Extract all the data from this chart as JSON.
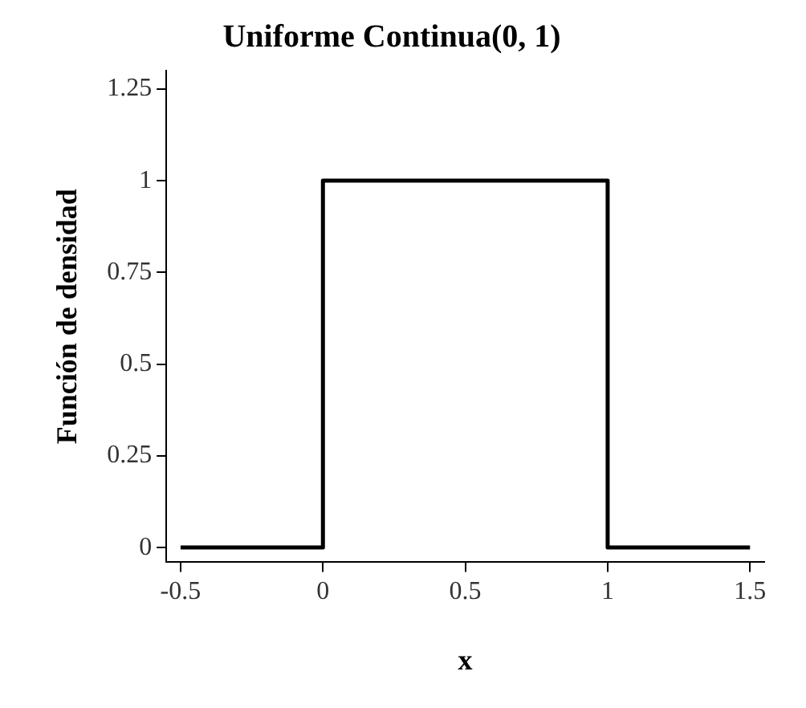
{
  "chart_data": {
    "type": "line",
    "title": "Uniforme Continua(0, 1)",
    "xlabel": "x",
    "ylabel": "Función de densidad",
    "x": [
      -0.5,
      0,
      0,
      1,
      1,
      1.5
    ],
    "series": [
      {
        "color": "#000000",
        "values": [
          0,
          0,
          1,
          1,
          0,
          0
        ]
      }
    ],
    "xlim": [
      -0.55,
      1.55
    ],
    "ylim": [
      -0.04,
      1.3
    ],
    "xticks": [
      -0.5,
      0,
      0.5,
      1,
      1.5
    ],
    "yticks": [
      0,
      0.25,
      0.5,
      0.75,
      1,
      1.25
    ],
    "grid": false,
    "legend": false,
    "marker": "none",
    "line_style": "solid"
  }
}
